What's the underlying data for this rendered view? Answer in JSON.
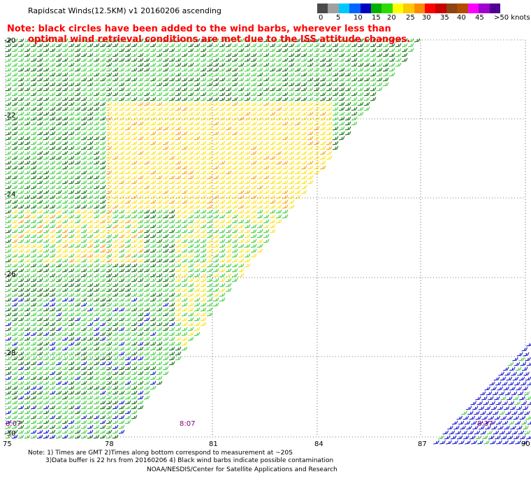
{
  "header": {
    "title": "Rapidscat Winds(12.5KM) v1 20160206 ascending",
    "note_line1": "Note: black circles have been added to the wind barbs, wherever less than",
    "note_line2": "optimal wind retrieval conditions are met due to the ISS attitude changes."
  },
  "colorbar": {
    "colors": [
      "#4a4a4a",
      "#a0a0a0",
      "#00c8ff",
      "#0064ff",
      "#0000c0",
      "#00b000",
      "#2eda00",
      "#ffff00",
      "#ffc800",
      "#ff8c00",
      "#ff0000",
      "#c80000",
      "#8b4513",
      "#b44c00",
      "#ff00ff",
      "#a000d0",
      "#500090"
    ],
    "labels": [
      "0",
      "5",
      "10",
      "15",
      "20",
      "25",
      "30",
      "35",
      "40",
      "45",
      ">50 knots"
    ]
  },
  "map": {
    "lat_labels": [
      "-20",
      "-22",
      "-24",
      "-26",
      "-28",
      "-30"
    ],
    "lon_labels": [
      "75",
      "78",
      "81",
      "84",
      "87",
      "90"
    ],
    "time_labels": [
      "8:07",
      "8:07",
      "8:37"
    ],
    "grid_color": "#000000",
    "swath_colors": {
      "light_green": "#32cd32",
      "dark_green": "#006400",
      "yellow": "#ffe000",
      "orange": "#ff9900",
      "blue": "#0000cd"
    }
  },
  "footer": {
    "line1": "Note: 1) Times are GMT 2)Times along bottom correspond to measurement at ~20S",
    "line2": "3)Data buffer is 22 hrs from 20160206 4) Black wind barbs indicate possible contamination",
    "credit": "NOAA/NESDIS/Center for Satellite Applications and Research"
  }
}
